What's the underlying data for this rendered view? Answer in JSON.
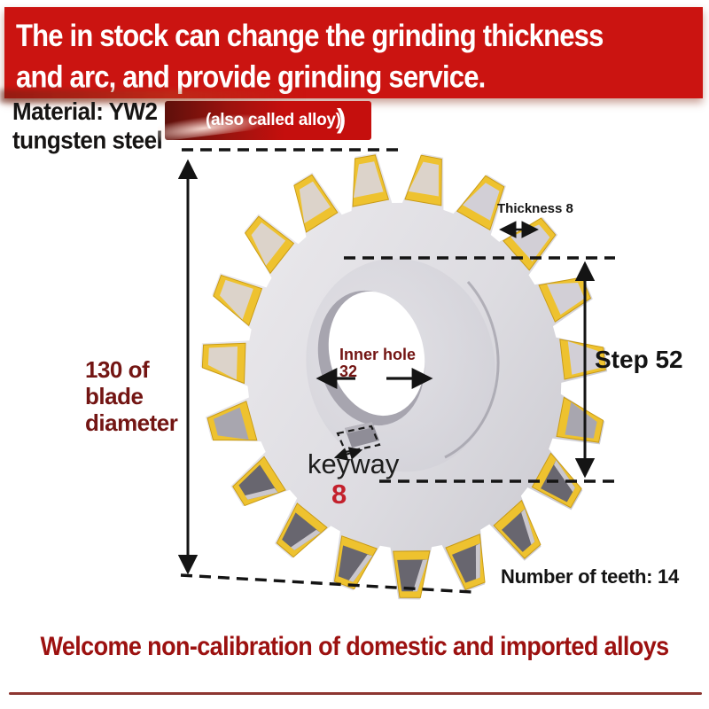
{
  "banner": {
    "line1": "The in stock can change the grinding thickness",
    "line2": "and arc, and provide grinding service."
  },
  "material": {
    "line1": "Material: YW2",
    "line2": "tungsten steel"
  },
  "ribbon": {
    "label": "(also called alloy)",
    "suffix": ")"
  },
  "annotations": {
    "blade_diameter_line1": "130 of blade",
    "blade_diameter_line2": "diameter",
    "thickness": "Thickness 8",
    "step": "Step 52",
    "inner_hole_line1": "Inner hole",
    "inner_hole_line2": "32",
    "keyway_label": "keyway",
    "keyway_value": "8",
    "teeth": "Number of teeth: 14"
  },
  "footer": {
    "text": "Welcome non-calibration of domestic and imported alloys"
  },
  "colors": {
    "banner_red": "#cb1411",
    "ribbon_red": "#c50f0d",
    "ribbon_dark": "#5e100b",
    "title_black": "#161413",
    "maroon_text": "#731513",
    "footer_red": "#9c1110",
    "crimson_8": "#c3202c",
    "line_black": "#141414",
    "rule_red": "#7e2a26",
    "gear": {
      "body1": "#efedf0",
      "body2": "#c5c4cb",
      "gold": "#eec22f",
      "gold_dark": "#c89a16",
      "face_light": "#dcd3ca",
      "face_gray": "#d2cfd6",
      "face_mid": "#a8a6af",
      "face_dark": "#68666f",
      "bevel": "#cac7cd",
      "hub": "#d8d7dc",
      "rim": "#a7a5af",
      "hole": "#ffffff",
      "notch": "#8f8d97"
    }
  }
}
